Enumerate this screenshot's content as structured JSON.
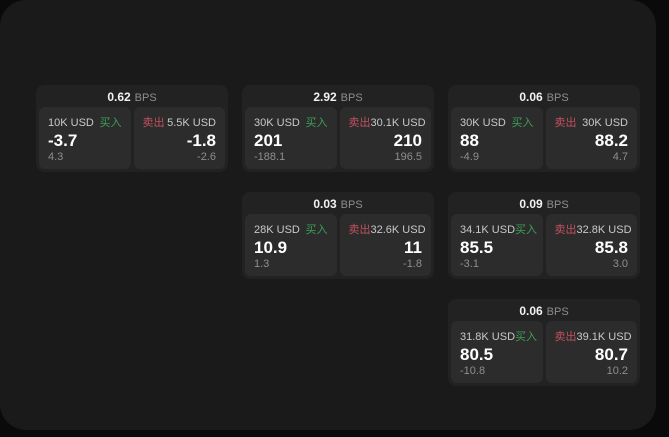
{
  "labels": {
    "bps_unit": "BPS",
    "buy": "买入",
    "sell": "卖出"
  },
  "colors": {
    "buy_green": "#3f9e58",
    "sell_red": "#c2505f",
    "panel_bg": "#1a1a1a",
    "card_bg": "#222222",
    "cell_bg": "#2c2c2c"
  },
  "cards": [
    {
      "bps": "0.62",
      "grid": {
        "row": 1,
        "col": 1
      },
      "buy": {
        "amount": "10K USD",
        "value": "-3.7",
        "sub": "4.3"
      },
      "sell": {
        "amount": "5.5K USD",
        "value": "-1.8",
        "sub": "-2.6"
      }
    },
    {
      "bps": "2.92",
      "grid": {
        "row": 1,
        "col": 2
      },
      "buy": {
        "amount": "30K USD",
        "value": "201",
        "sub": "-188.1"
      },
      "sell": {
        "amount": "30.1K USD",
        "value": "210",
        "sub": "196.5"
      }
    },
    {
      "bps": "0.06",
      "grid": {
        "row": 1,
        "col": 3
      },
      "buy": {
        "amount": "30K USD",
        "value": "88",
        "sub": "-4.9"
      },
      "sell": {
        "amount": "30K USD",
        "value": "88.2",
        "sub": "4.7"
      }
    },
    {
      "bps": "0.03",
      "grid": {
        "row": 2,
        "col": 2
      },
      "buy": {
        "amount": "28K USD",
        "value": "10.9",
        "sub": "1.3"
      },
      "sell": {
        "amount": "32.6K USD",
        "value": "11",
        "sub": "-1.8"
      }
    },
    {
      "bps": "0.09",
      "grid": {
        "row": 2,
        "col": 3
      },
      "buy": {
        "amount": "34.1K USD",
        "value": "85.5",
        "sub": "-3.1"
      },
      "sell": {
        "amount": "32.8K USD",
        "value": "85.8",
        "sub": "3.0"
      }
    },
    {
      "bps": "0.06",
      "grid": {
        "row": 3,
        "col": 3
      },
      "buy": {
        "amount": "31.8K USD",
        "value": "80.5",
        "sub": "-10.8"
      },
      "sell": {
        "amount": "39.1K USD",
        "value": "80.7",
        "sub": "10.2"
      }
    }
  ]
}
